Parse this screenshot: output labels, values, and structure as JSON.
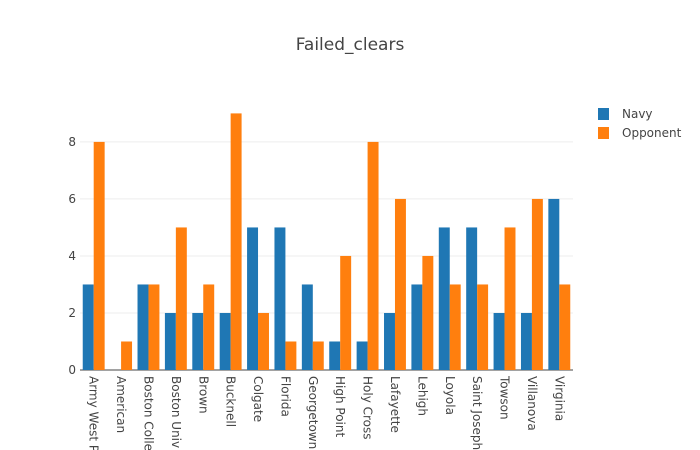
{
  "chart_data": {
    "type": "bar",
    "title": "Failed_clears",
    "xlabel": "",
    "ylabel": "",
    "ylim": [
      0,
      9.47
    ],
    "yticks": [
      0,
      2,
      4,
      6,
      8
    ],
    "grid": true,
    "legend_position": "top-right",
    "categories": [
      "Army West P",
      "American",
      "Boston Colle",
      "Boston Univ",
      "Brown",
      "Bucknell",
      "Colgate",
      "Florida",
      "Georgetown",
      "High Point",
      "Holy Cross",
      "Lafayette",
      "Lehigh",
      "Loyola",
      "Saint Joseph",
      "Towson",
      "Villanova",
      "Virginia"
    ],
    "series": [
      {
        "name": "Navy",
        "color": "#1f77b4",
        "values": [
          3,
          0,
          3,
          2,
          2,
          2,
          5,
          5,
          3,
          1,
          1,
          2,
          3,
          5,
          5,
          2,
          2,
          6
        ]
      },
      {
        "name": "Opponent",
        "color": "#ff7f0e",
        "values": [
          8,
          1,
          3,
          5,
          3,
          9,
          2,
          1,
          1,
          4,
          8,
          6,
          4,
          3,
          3,
          5,
          6,
          3
        ]
      }
    ]
  }
}
